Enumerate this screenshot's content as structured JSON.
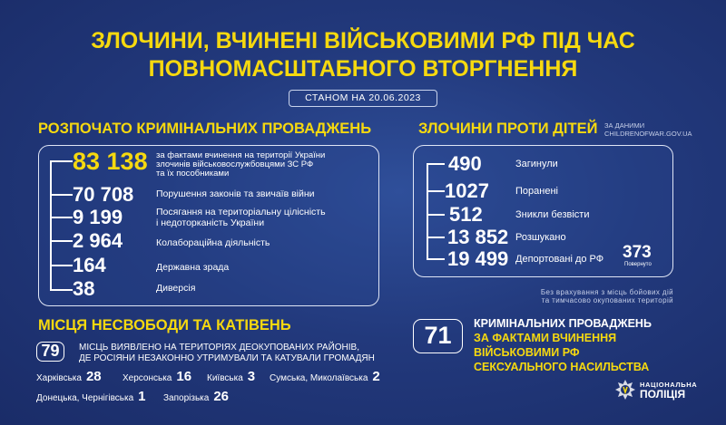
{
  "title": {
    "line1": "ЗЛОЧИНИ, ВЧИНЕНІ ВІЙСЬКОВИМИ РФ ПІД ЧАС",
    "line2": "ПОВНОМАСШТАБНОГО ВТОРГНЕННЯ"
  },
  "date_label": "СТАНОМ НА 20.06.2023",
  "criminal": {
    "heading": "РОЗПОЧАТО КРИМІНАЛЬНИХ ПРОВАДЖЕНЬ",
    "rows": [
      {
        "value": "83 138",
        "desc1": "за фактами вчинення на території України",
        "desc2": "злочинів військовослужбовцями ЗС РФ",
        "desc3": "та їх пособниками"
      },
      {
        "value": "70 708",
        "desc1": "Порушення законів та звичаїв війни"
      },
      {
        "value": "9 199",
        "desc1": "Посягання на територіальну цілісність",
        "desc2": "і недоторканість України"
      },
      {
        "value": "2 964",
        "desc1": "Колабораційна діяльність"
      },
      {
        "value": "164",
        "desc1": "Державна зрада"
      },
      {
        "value": "38",
        "desc1": "Диверсія"
      }
    ]
  },
  "children": {
    "heading": "ЗЛОЧИНИ ПРОТИ ДІТЕЙ",
    "source1": "ЗА ДАНИМИ",
    "source2": "CHILDRENOFWAR.GOV.UA",
    "rows": [
      {
        "value": "490",
        "label": "Загинули"
      },
      {
        "value": "1027",
        "label": "Поранені"
      },
      {
        "value": "512",
        "label": "Зникли безвісти"
      },
      {
        "value": "13 852",
        "label": "Розшукано"
      },
      {
        "value": "19 499",
        "label": "Депортовані до РФ"
      }
    ],
    "returned": {
      "value": "373",
      "label": "Повернуто"
    },
    "note1": "Без врахування з місць бойових дій",
    "note2": "та тимчасово окупованих територій"
  },
  "places": {
    "heading": "МІСЦЯ НЕСВОБОДИ ТА КАТІВЕНЬ",
    "count": "79",
    "text1": "МІСЦЬ ВИЯВЛЕНО НА ТЕРИТОРІЯХ ДЕОКУПОВАНИХ РАЙОНІВ,",
    "text2": "ДЕ РОСІЯНИ НЕЗАКОННО УТРИМУВАЛИ ТА КАТУВАЛИ ГРОМАДЯН",
    "regions": [
      {
        "name": "Харківська",
        "value": "28"
      },
      {
        "name": "Херсонська",
        "value": "16"
      },
      {
        "name": "Київська",
        "value": "3"
      },
      {
        "name": "Сумська, Миколаївська",
        "value": "2"
      },
      {
        "name": "Донецька, Чернігівська",
        "value": "1"
      },
      {
        "name": "Запорізька",
        "value": "26"
      }
    ]
  },
  "sexual": {
    "count": "71",
    "line1": "КРИМІНАЛЬНИХ ПРОВАДЖЕНЬ",
    "line2": "ЗА ФАКТАМИ ВЧИНЕННЯ",
    "line3": "ВІЙСЬКОВИМИ РФ",
    "line4": "СЕКСУАЛЬНОГО НАСИЛЬСТВА"
  },
  "logo": {
    "line1": "НАЦІОНАЛЬНА",
    "line2": "ПОЛІЦІЯ",
    "icon": "police-star-emblem"
  },
  "colors": {
    "accent": "#f6d90f",
    "background": "#22397c"
  }
}
